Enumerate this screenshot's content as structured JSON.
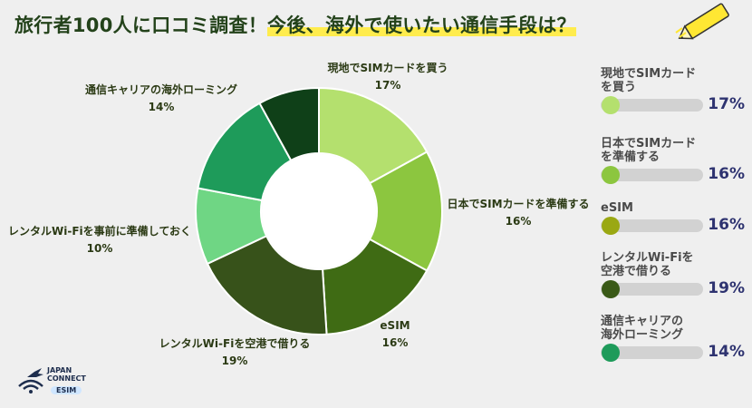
{
  "title": {
    "part1": "旅行者100人に口コミ調査！",
    "part2": "今後、海外で使いたい通信手段は？"
  },
  "chart_data": {
    "type": "pie",
    "variant": "donut",
    "unit": "%",
    "slices": [
      {
        "label": "現地でSIMカードを買う",
        "value": 17,
        "color": "#b4e06e"
      },
      {
        "label": "日本でSIMカードを準備する",
        "value": 16,
        "color": "#8cc63f"
      },
      {
        "label": "eSIM",
        "value": 16,
        "color": "#3f6b14"
      },
      {
        "label": "レンタルWi-Fiを空港で借りる",
        "value": 19,
        "color": "#37521a"
      },
      {
        "label": "レンタルWi-Fiを事前に準備しておく",
        "value": 10,
        "color": "#6fd684"
      },
      {
        "label": "通信キャリアの海外ローミング",
        "value": 14,
        "color": "#1e9b5a"
      },
      {
        "label": "",
        "value": 8,
        "color": "#0f4018"
      }
    ]
  },
  "labels": [
    {
      "name": "現地でSIMカードを買う",
      "pct": "17%"
    },
    {
      "name": "日本でSIMカードを準備する",
      "pct": "16%"
    },
    {
      "name": "eSIM",
      "pct": "16%"
    },
    {
      "name": "レンタルWi-Fiを空港で借りる",
      "pct": "19%"
    },
    {
      "name": "レンタルWi-Fiを事前に準備しておく",
      "pct": "10%"
    },
    {
      "name": "通信キャリアの海外ローミング",
      "pct": "14%"
    }
  ],
  "legend": [
    {
      "label": "現地でSIMカード\nを買う",
      "pct": "17%",
      "value": 17,
      "color": "#b4e06e"
    },
    {
      "label": "日本でSIMカード\nを準備する",
      "pct": "16%",
      "value": 16,
      "color": "#8cc63f"
    },
    {
      "label": "eSIM",
      "pct": "16%",
      "value": 16,
      "color": "#9aa813"
    },
    {
      "label": "レンタルWi-Fiを\n空港で借りる",
      "pct": "19%",
      "value": 19,
      "color": "#3a5a17"
    },
    {
      "label": "通信キャリアの\n海外ローミング",
      "pct": "14%",
      "value": 14,
      "color": "#1e9b5a"
    }
  ],
  "logo": {
    "line1": "JAPAN",
    "line2": "CONNECT",
    "line3": "ESIM"
  }
}
